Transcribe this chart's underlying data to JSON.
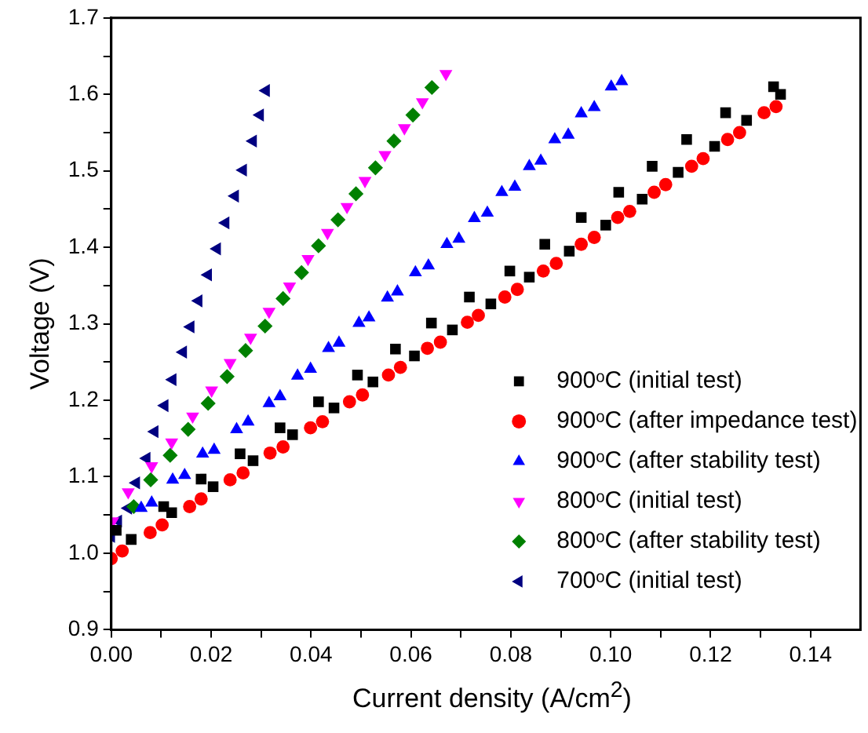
{
  "chart_data": {
    "type": "scatter",
    "xlabel": "Current density (A/cm$^{2}$)",
    "ylabel": "Voltage (V)",
    "xlim": [
      0,
      0.15
    ],
    "ylim": [
      0.9,
      1.7
    ],
    "xticks": [
      {
        "value": 0,
        "label": "0.00"
      },
      {
        "value": 0.01,
        "label": null
      },
      {
        "value": 0.02,
        "label": "0.02"
      },
      {
        "value": 0.03,
        "label": null
      },
      {
        "value": 0.04,
        "label": "0.04"
      },
      {
        "value": 0.05,
        "label": null
      },
      {
        "value": 0.06,
        "label": "0.06"
      },
      {
        "value": 0.07,
        "label": null
      },
      {
        "value": 0.08,
        "label": "0.08"
      },
      {
        "value": 0.09,
        "label": null
      },
      {
        "value": 0.1,
        "label": "0.10"
      },
      {
        "value": 0.11,
        "label": null
      },
      {
        "value": 0.12,
        "label": "0.12"
      },
      {
        "value": 0.13,
        "label": null
      },
      {
        "value": 0.14,
        "label": "0.14"
      }
    ],
    "yticks": [
      0.9,
      {
        "value": 0.95,
        "label": null
      },
      {
        "value": 1,
        "label": "1.0"
      },
      {
        "value": 1.05,
        "label": null
      },
      1.1,
      {
        "value": 1.15,
        "label": null
      },
      1.2,
      {
        "value": 1.25,
        "label": null
      },
      1.3,
      {
        "value": 1.35,
        "label": null
      },
      1.4,
      {
        "value": 1.45,
        "label": null
      },
      1.5,
      {
        "value": 1.55,
        "label": null
      },
      1.6,
      {
        "value": 1.65,
        "label": null
      },
      1.7
    ],
    "grid": false,
    "legend": "bottom right",
    "series": [
      {
        "name": "900ᵒC (initial test)",
        "color": "#000000",
        "marker": "square",
        "x": [
          0.001,
          0.004,
          0.0105,
          0.0121,
          0.018,
          0.0204,
          0.0258,
          0.0284,
          0.0338,
          0.0363,
          0.0415,
          0.0446,
          0.0493,
          0.0524,
          0.0569,
          0.0607,
          0.0641,
          0.0683,
          0.0717,
          0.076,
          0.0798,
          0.0837,
          0.0868,
          0.0917,
          0.0941,
          0.099,
          0.1016,
          0.1063,
          0.1083,
          0.1135,
          0.1152,
          0.1208,
          0.123,
          0.1272,
          0.1326,
          0.134
        ],
        "values": [
          1.03,
          1.018,
          1.061,
          1.053,
          1.097,
          1.087,
          1.13,
          1.121,
          1.164,
          1.155,
          1.198,
          1.19,
          1.233,
          1.224,
          1.267,
          1.258,
          1.301,
          1.292,
          1.335,
          1.326,
          1.369,
          1.361,
          1.404,
          1.395,
          1.439,
          1.429,
          1.472,
          1.463,
          1.506,
          1.498,
          1.541,
          1.532,
          1.576,
          1.566,
          1.61,
          1.6
        ]
      },
      {
        "name": "900ᵒC (after impedance test)",
        "color": "#ff0000",
        "marker": "circle",
        "x": [
          0,
          0.0022,
          0.0078,
          0.0102,
          0.0157,
          0.018,
          0.0238,
          0.0264,
          0.0318,
          0.0344,
          0.0399,
          0.0423,
          0.0477,
          0.0503,
          0.0555,
          0.0579,
          0.0633,
          0.0659,
          0.0713,
          0.0735,
          0.0788,
          0.0813,
          0.0865,
          0.0891,
          0.0941,
          0.0967,
          0.1014,
          0.1038,
          0.1087,
          0.111,
          0.1162,
          0.1185,
          0.1234,
          0.1258,
          0.1307,
          0.1331
        ],
        "values": [
          0.993,
          1.003,
          1.027,
          1.037,
          1.061,
          1.071,
          1.096,
          1.105,
          1.131,
          1.139,
          1.164,
          1.172,
          1.198,
          1.207,
          1.233,
          1.243,
          1.268,
          1.276,
          1.302,
          1.311,
          1.335,
          1.345,
          1.369,
          1.379,
          1.404,
          1.413,
          1.439,
          1.447,
          1.472,
          1.482,
          1.506,
          1.516,
          1.541,
          1.55,
          1.576,
          1.584
        ]
      },
      {
        "name": "900ᵒC (after stability test)",
        "color": "#0000ff",
        "marker": "triangle",
        "x": [
          0.006,
          0.0081,
          0.0123,
          0.0147,
          0.0183,
          0.0206,
          0.0251,
          0.0274,
          0.0316,
          0.0338,
          0.0373,
          0.0399,
          0.0435,
          0.0456,
          0.0496,
          0.0516,
          0.0553,
          0.0573,
          0.0609,
          0.0635,
          0.0672,
          0.0696,
          0.0727,
          0.0753,
          0.0782,
          0.0808,
          0.0837,
          0.086,
          0.0888,
          0.0915,
          0.0941,
          0.0967,
          0.1001,
          0.1022
        ],
        "values": [
          1.059,
          1.066,
          1.096,
          1.102,
          1.13,
          1.135,
          1.162,
          1.172,
          1.196,
          1.205,
          1.232,
          1.241,
          1.268,
          1.275,
          1.301,
          1.308,
          1.334,
          1.342,
          1.367,
          1.376,
          1.404,
          1.411,
          1.438,
          1.445,
          1.472,
          1.479,
          1.506,
          1.513,
          1.541,
          1.547,
          1.575,
          1.583,
          1.61,
          1.617
        ]
      },
      {
        "name": "800ᵒC (initial test)",
        "color": "#ff00ff",
        "marker": "triangle-down",
        "x": [
          0.0003,
          0.0034,
          0.0081,
          0.0121,
          0.0163,
          0.0201,
          0.0238,
          0.0279,
          0.0316,
          0.0357,
          0.0394,
          0.0433,
          0.0472,
          0.0508,
          0.0548,
          0.0587,
          0.0623,
          0.067
        ],
        "values": [
          1.042,
          1.08,
          1.114,
          1.145,
          1.179,
          1.213,
          1.249,
          1.282,
          1.316,
          1.349,
          1.385,
          1.419,
          1.453,
          1.487,
          1.521,
          1.556,
          1.59,
          1.627
        ]
      },
      {
        "name": "800ᵒC (after stability test)",
        "color": "#008000",
        "marker": "diamond",
        "x": [
          0.0045,
          0.0079,
          0.0118,
          0.0154,
          0.0194,
          0.0232,
          0.0269,
          0.0308,
          0.0344,
          0.0381,
          0.0415,
          0.0454,
          0.049,
          0.0529,
          0.0566,
          0.0604,
          0.0642
        ],
        "values": [
          1.061,
          1.096,
          1.128,
          1.162,
          1.196,
          1.231,
          1.265,
          1.297,
          1.333,
          1.367,
          1.402,
          1.436,
          1.47,
          1.504,
          1.539,
          1.573,
          1.609
        ]
      },
      {
        "name": "700ᵒC (initial test)",
        "color": "#000080",
        "marker": "triangle-left",
        "x": [
          0,
          0.0014,
          0.0034,
          0.005,
          0.0071,
          0.0087,
          0.0107,
          0.0123,
          0.0144,
          0.0159,
          0.0175,
          0.0194,
          0.0212,
          0.0229,
          0.0248,
          0.0264,
          0.0284,
          0.0298,
          0.031
        ],
        "values": [
          1.022,
          1.042,
          1.059,
          1.092,
          1.124,
          1.159,
          1.193,
          1.227,
          1.263,
          1.296,
          1.33,
          1.364,
          1.398,
          1.432,
          1.467,
          1.501,
          1.539,
          1.573,
          1.605
        ]
      }
    ]
  }
}
